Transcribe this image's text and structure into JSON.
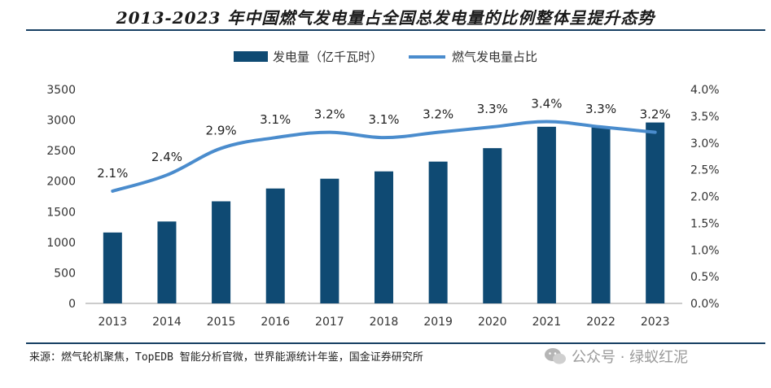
{
  "title": "2013-2023 年中国燃气发电量占全国总发电量的比例整体呈提升态势",
  "source": "来源：燃气轮机聚焦，TopEDB 智能分析官微，世界能源统计年鉴，国金证券研究所",
  "watermark": "公众号 · 绿蚁红泥",
  "colors": {
    "bar": "#0f4a73",
    "line": "#4a8ccd",
    "rule": "#173f63"
  },
  "chart_data": {
    "type": "bar",
    "title": "2013-2023 年中国燃气发电量占全国总发电量的比例整体呈提升态势",
    "categories": [
      "2013",
      "2014",
      "2015",
      "2016",
      "2017",
      "2018",
      "2019",
      "2020",
      "2021",
      "2022",
      "2023"
    ],
    "series": [
      {
        "name": "发电量（亿千瓦时）",
        "type": "bar",
        "axis": "left",
        "values": [
          1160,
          1340,
          1670,
          1880,
          2040,
          2160,
          2320,
          2540,
          2890,
          2880,
          2960
        ]
      },
      {
        "name": "燃气发电量占比",
        "type": "line",
        "axis": "right",
        "values": [
          2.1,
          2.4,
          2.9,
          3.1,
          3.2,
          3.1,
          3.2,
          3.3,
          3.4,
          3.3,
          3.2
        ],
        "labels": [
          "2.1%",
          "2.4%",
          "2.9%",
          "3.1%",
          "3.2%",
          "3.1%",
          "3.2%",
          "3.3%",
          "3.4%",
          "3.3%",
          "3.2%"
        ]
      }
    ],
    "y_left": {
      "min": 0,
      "max": 3500,
      "ticks": [
        "0",
        "500",
        "1000",
        "1500",
        "2000",
        "2500",
        "3000",
        "3500"
      ]
    },
    "y_right": {
      "min": 0,
      "max": 4.0,
      "ticks": [
        "0.0%",
        "0.5%",
        "1.0%",
        "1.5%",
        "2.0%",
        "2.5%",
        "3.0%",
        "3.5%",
        "4.0%"
      ]
    },
    "grid": false,
    "legend": "top-center"
  }
}
